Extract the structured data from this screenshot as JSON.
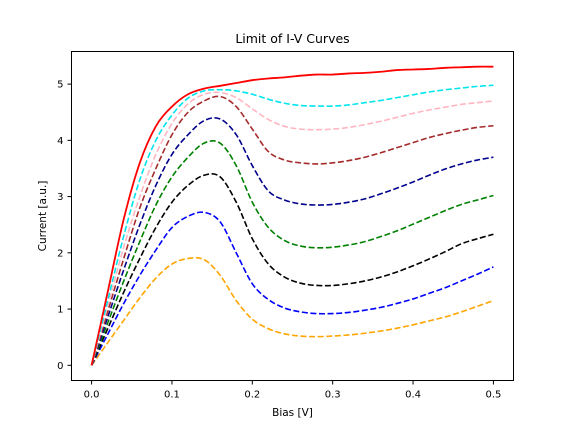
{
  "chart_data": {
    "type": "line",
    "title": "Limit of I-V Curves",
    "xlabel": "Bias [V]",
    "ylabel": "Current [a.u.]",
    "xlim": [
      -0.025,
      0.525
    ],
    "ylim": [
      -0.27,
      5.58
    ],
    "xticks": [
      0.0,
      0.1,
      0.2,
      0.3,
      0.4,
      0.5
    ],
    "xtick_labels": [
      "0.0",
      "0.1",
      "0.2",
      "0.3",
      "0.4",
      "0.5"
    ],
    "yticks": [
      0,
      1,
      2,
      3,
      4,
      5
    ],
    "ytick_labels": [
      "0",
      "1",
      "2",
      "3",
      "4",
      "5"
    ],
    "grid": false,
    "legend": false,
    "x": [
      0.0,
      0.02,
      0.04,
      0.06,
      0.08,
      0.1,
      0.12,
      0.14,
      0.16,
      0.18,
      0.2,
      0.22,
      0.24,
      0.26,
      0.28,
      0.3,
      0.32,
      0.34,
      0.36,
      0.38,
      0.4,
      0.42,
      0.44,
      0.46,
      0.48,
      0.5
    ],
    "series": [
      {
        "color": "#ffa500",
        "dashed": true,
        "values": [
          0.0,
          0.4,
          0.8,
          1.2,
          1.55,
          1.8,
          1.9,
          1.88,
          1.6,
          1.15,
          0.82,
          0.65,
          0.56,
          0.52,
          0.51,
          0.52,
          0.54,
          0.57,
          0.61,
          0.66,
          0.72,
          0.79,
          0.86,
          0.95,
          1.05,
          1.15
        ]
      },
      {
        "color": "#0000ff",
        "dashed": true,
        "values": [
          0.0,
          0.55,
          1.1,
          1.6,
          2.05,
          2.45,
          2.65,
          2.72,
          2.55,
          2.0,
          1.45,
          1.17,
          1.02,
          0.95,
          0.92,
          0.92,
          0.94,
          0.98,
          1.03,
          1.1,
          1.18,
          1.28,
          1.38,
          1.5,
          1.62,
          1.75
        ]
      },
      {
        "color": "#000000",
        "dashed": true,
        "values": [
          0.0,
          0.65,
          1.3,
          1.9,
          2.45,
          2.9,
          3.2,
          3.38,
          3.35,
          2.9,
          2.25,
          1.8,
          1.57,
          1.46,
          1.42,
          1.42,
          1.45,
          1.5,
          1.57,
          1.66,
          1.77,
          1.89,
          2.02,
          2.16,
          2.25,
          2.33
        ]
      },
      {
        "color": "#008000",
        "dashed": true,
        "values": [
          0.0,
          0.75,
          1.5,
          2.2,
          2.85,
          3.35,
          3.7,
          3.95,
          3.95,
          3.55,
          2.9,
          2.45,
          2.22,
          2.12,
          2.09,
          2.1,
          2.14,
          2.2,
          2.29,
          2.39,
          2.51,
          2.63,
          2.75,
          2.86,
          2.94,
          3.02
        ]
      },
      {
        "color": "#00008b",
        "dashed": true,
        "values": [
          0.0,
          0.85,
          1.7,
          2.5,
          3.2,
          3.75,
          4.1,
          4.35,
          4.38,
          4.1,
          3.55,
          3.1,
          2.94,
          2.87,
          2.85,
          2.86,
          2.9,
          2.96,
          3.05,
          3.15,
          3.26,
          3.38,
          3.49,
          3.58,
          3.65,
          3.7
        ]
      },
      {
        "color": "#a52a2a",
        "dashed": true,
        "values": [
          0.0,
          0.95,
          1.9,
          2.8,
          3.5,
          4.1,
          4.5,
          4.7,
          4.78,
          4.6,
          4.2,
          3.8,
          3.65,
          3.6,
          3.58,
          3.6,
          3.64,
          3.7,
          3.78,
          3.87,
          3.96,
          4.05,
          4.12,
          4.18,
          4.23,
          4.26
        ]
      },
      {
        "color": "#ffb6c1",
        "dashed": true,
        "values": [
          0.0,
          1.05,
          2.1,
          3.0,
          3.75,
          4.3,
          4.65,
          4.82,
          4.85,
          4.76,
          4.56,
          4.37,
          4.25,
          4.2,
          4.19,
          4.2,
          4.23,
          4.28,
          4.34,
          4.41,
          4.48,
          4.54,
          4.59,
          4.64,
          4.67,
          4.7
        ]
      },
      {
        "color": "#00e5ee",
        "dashed": true,
        "values": [
          0.0,
          1.15,
          2.3,
          3.3,
          4.0,
          4.45,
          4.75,
          4.88,
          4.9,
          4.88,
          4.82,
          4.73,
          4.66,
          4.62,
          4.61,
          4.61,
          4.63,
          4.67,
          4.71,
          4.76,
          4.81,
          4.86,
          4.9,
          4.93,
          4.96,
          4.98
        ]
      },
      {
        "color": "#ff0000",
        "dashed": false,
        "values": [
          0.0,
          1.3,
          2.6,
          3.6,
          4.25,
          4.6,
          4.82,
          4.92,
          4.97,
          5.02,
          5.07,
          5.1,
          5.12,
          5.15,
          5.17,
          5.17,
          5.19,
          5.2,
          5.22,
          5.25,
          5.26,
          5.27,
          5.29,
          5.3,
          5.31,
          5.31
        ]
      }
    ]
  }
}
